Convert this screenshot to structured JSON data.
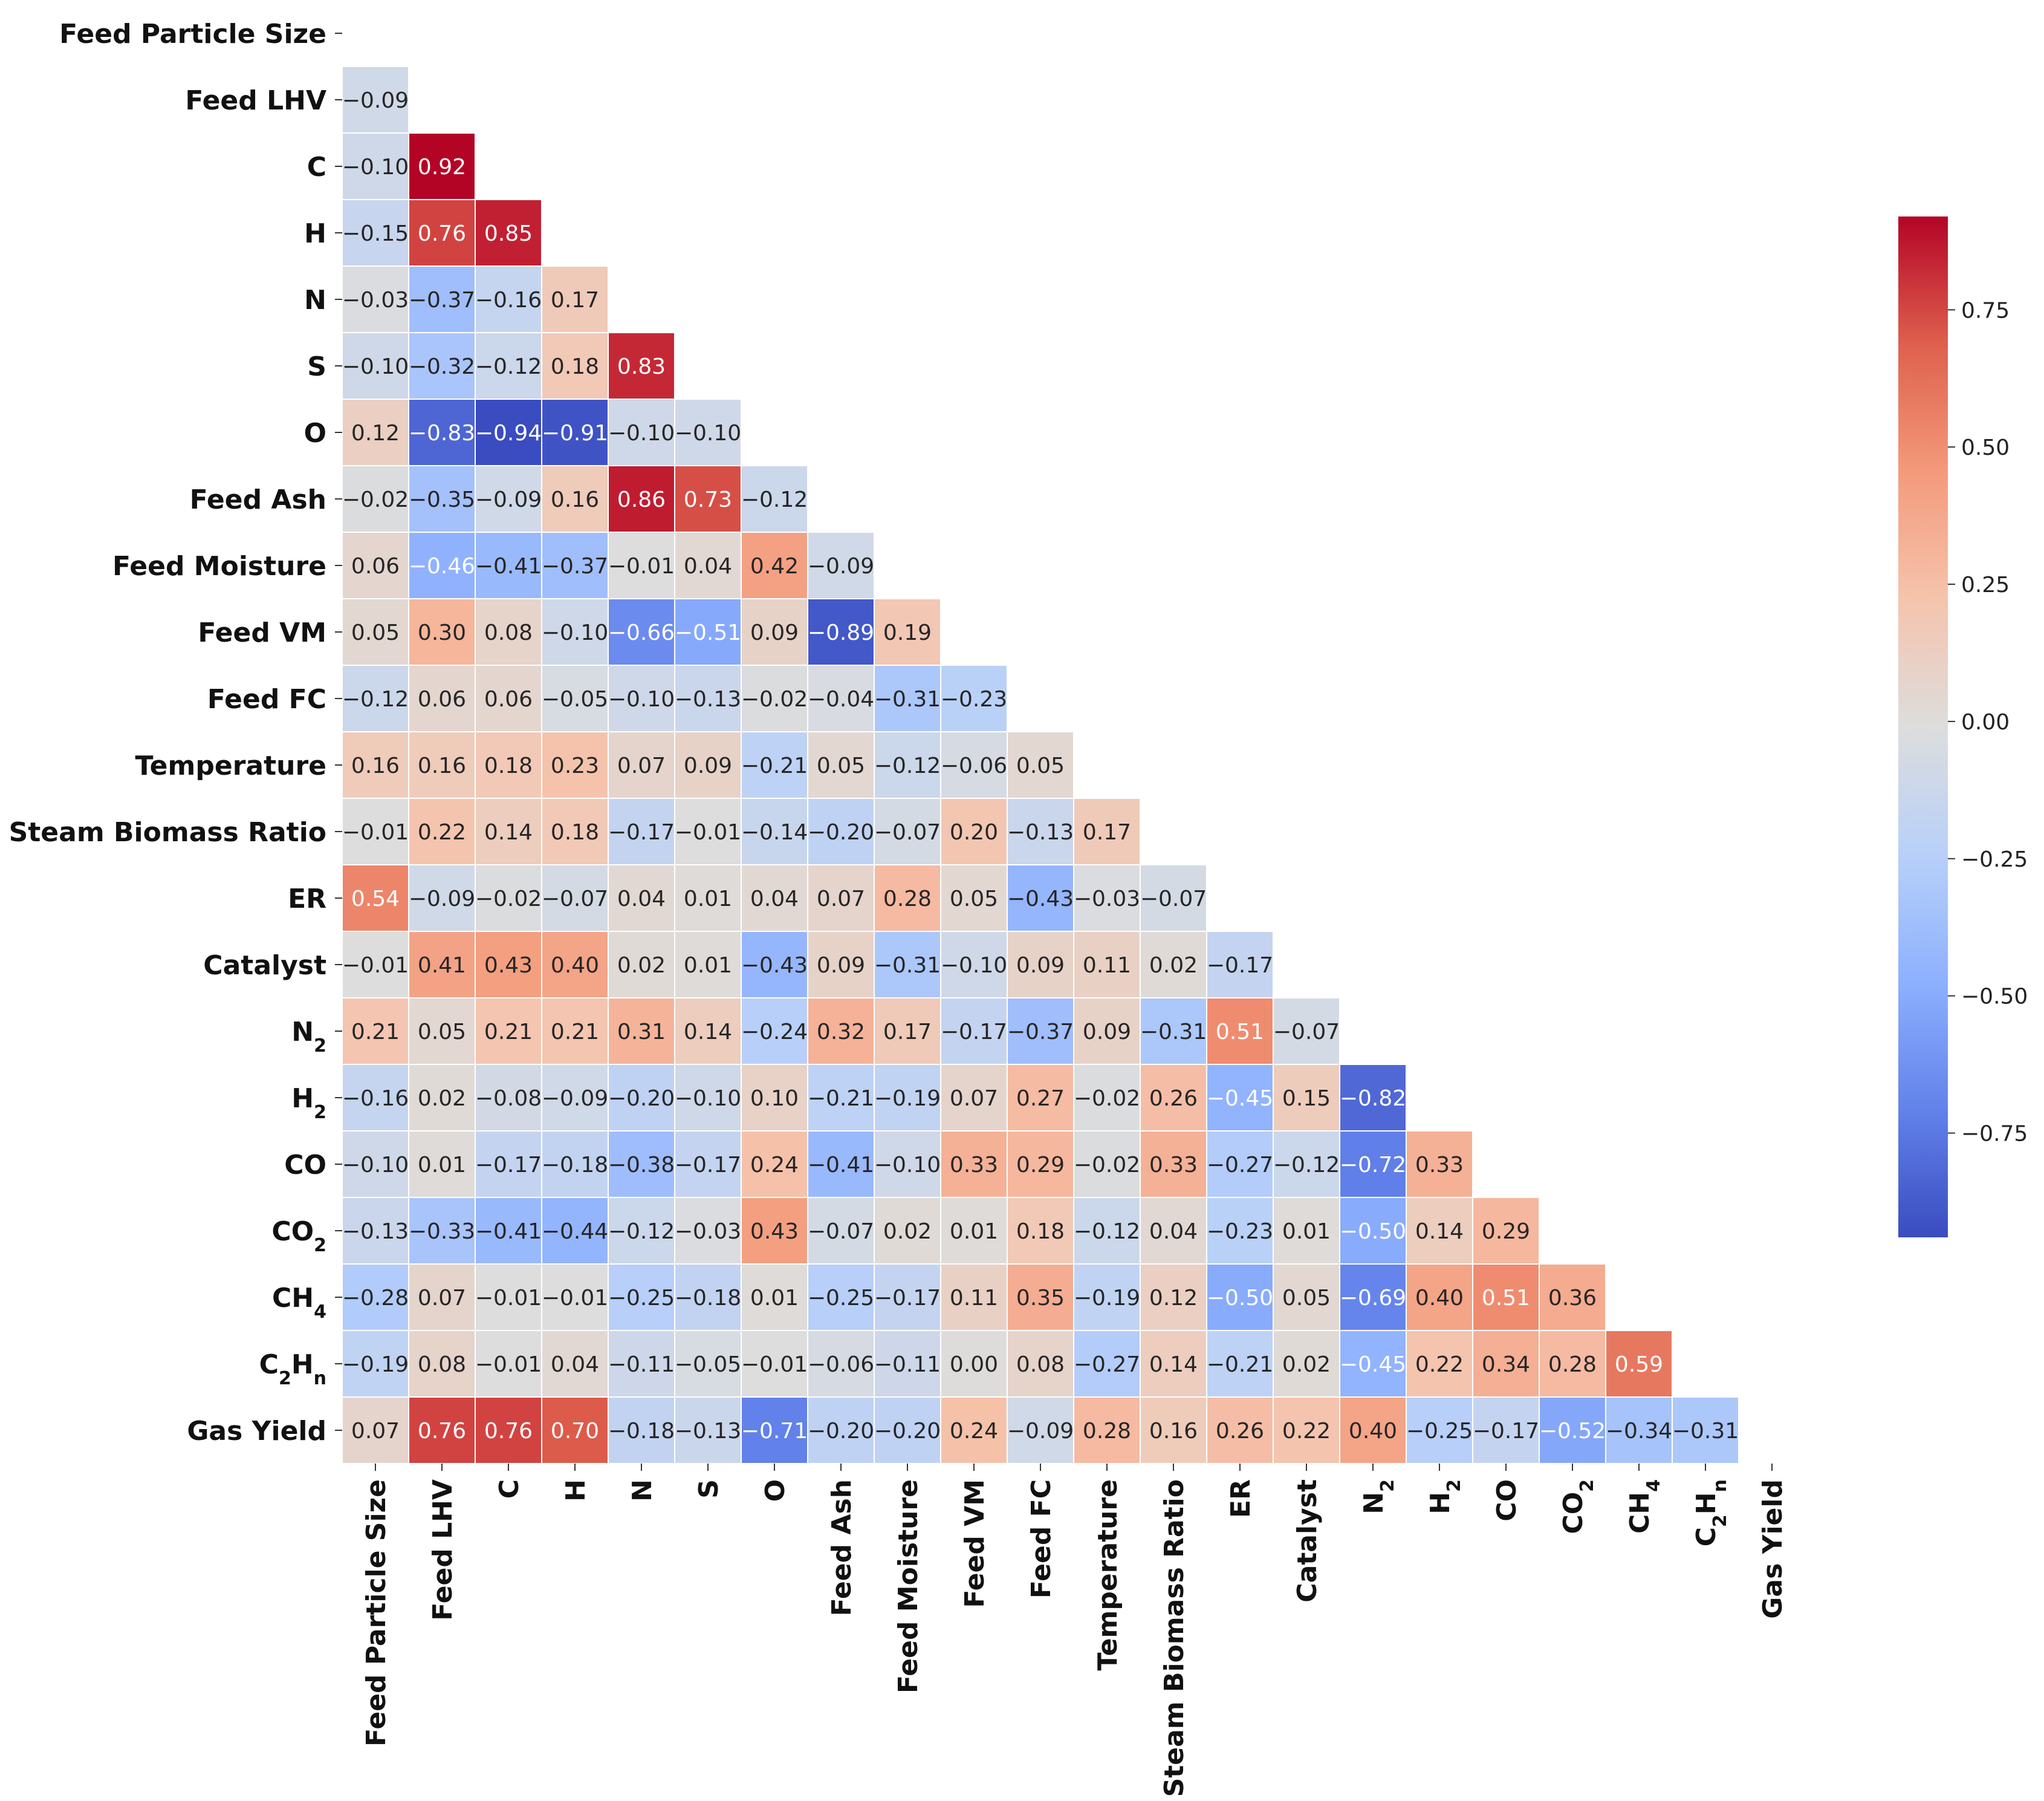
{
  "chart_data": {
    "type": "heatmap",
    "title": "",
    "xlabel": "",
    "ylabel": "",
    "mask": "upper-triangle",
    "variables": [
      [
        "Feed Particle Size"
      ],
      [
        "Feed LHV"
      ],
      [
        "C"
      ],
      [
        "H"
      ],
      [
        "N"
      ],
      [
        "S"
      ],
      [
        "O"
      ],
      [
        "Feed Ash"
      ],
      [
        "Feed Moisture"
      ],
      [
        "Feed VM"
      ],
      [
        "Feed FC"
      ],
      [
        "Temperature"
      ],
      [
        "Steam Biomass Ratio"
      ],
      [
        "ER"
      ],
      [
        "Catalyst"
      ],
      [
        "N",
        "2"
      ],
      [
        "H",
        "2"
      ],
      [
        "CO"
      ],
      [
        "CO",
        "2"
      ],
      [
        "CH",
        "4"
      ],
      [
        "C",
        "2",
        "H",
        "n"
      ],
      [
        "Gas Yield"
      ]
    ],
    "values": [
      [],
      [
        -0.09
      ],
      [
        -0.1,
        0.92
      ],
      [
        -0.15,
        0.76,
        0.85
      ],
      [
        -0.03,
        -0.37,
        -0.16,
        0.17
      ],
      [
        -0.1,
        -0.32,
        -0.12,
        0.18,
        0.83
      ],
      [
        0.12,
        -0.83,
        -0.94,
        -0.91,
        -0.1,
        -0.1
      ],
      [
        -0.02,
        -0.35,
        -0.09,
        0.16,
        0.86,
        0.73,
        -0.12
      ],
      [
        0.06,
        -0.46,
        -0.41,
        -0.37,
        -0.01,
        0.04,
        0.42,
        -0.09
      ],
      [
        0.05,
        0.3,
        0.08,
        -0.1,
        -0.66,
        -0.51,
        0.09,
        -0.89,
        0.19
      ],
      [
        -0.12,
        0.06,
        0.06,
        -0.05,
        -0.1,
        -0.13,
        -0.02,
        -0.04,
        -0.31,
        -0.23
      ],
      [
        0.16,
        0.16,
        0.18,
        0.23,
        0.07,
        0.09,
        -0.21,
        0.05,
        -0.12,
        -0.06,
        0.05
      ],
      [
        -0.01,
        0.22,
        0.14,
        0.18,
        -0.17,
        -0.01,
        -0.14,
        -0.2,
        -0.07,
        0.2,
        -0.13,
        0.17
      ],
      [
        0.54,
        -0.09,
        -0.02,
        -0.07,
        0.04,
        0.01,
        0.04,
        0.07,
        0.28,
        0.05,
        -0.43,
        -0.03,
        -0.07
      ],
      [
        -0.01,
        0.41,
        0.43,
        0.4,
        0.02,
        0.01,
        -0.43,
        0.09,
        -0.31,
        -0.1,
        0.09,
        0.11,
        0.02,
        -0.17
      ],
      [
        0.21,
        0.05,
        0.21,
        0.21,
        0.31,
        0.14,
        -0.24,
        0.32,
        0.17,
        -0.17,
        -0.37,
        0.09,
        -0.31,
        0.51,
        -0.07
      ],
      [
        -0.16,
        0.02,
        -0.08,
        -0.09,
        -0.2,
        -0.1,
        0.1,
        -0.21,
        -0.19,
        0.07,
        0.27,
        -0.02,
        0.26,
        -0.45,
        0.15,
        -0.82
      ],
      [
        -0.1,
        0.01,
        -0.17,
        -0.18,
        -0.38,
        -0.17,
        0.24,
        -0.41,
        -0.1,
        0.33,
        0.29,
        -0.02,
        0.33,
        -0.27,
        -0.12,
        -0.72,
        0.33
      ],
      [
        -0.13,
        -0.33,
        -0.41,
        -0.44,
        -0.12,
        -0.03,
        0.43,
        -0.07,
        0.02,
        0.01,
        0.18,
        -0.12,
        0.04,
        -0.23,
        0.01,
        -0.5,
        0.14,
        0.29
      ],
      [
        -0.28,
        0.07,
        -0.01,
        -0.01,
        -0.25,
        -0.18,
        0.01,
        -0.25,
        -0.17,
        0.11,
        0.35,
        -0.19,
        0.12,
        -0.5,
        0.05,
        -0.69,
        0.4,
        0.51,
        0.36
      ],
      [
        -0.19,
        0.08,
        -0.01,
        0.04,
        -0.11,
        -0.05,
        -0.01,
        -0.06,
        -0.11,
        0.0,
        0.08,
        -0.27,
        0.14,
        -0.21,
        0.02,
        -0.45,
        0.22,
        0.34,
        0.28,
        0.59
      ],
      [
        0.07,
        0.76,
        0.76,
        0.7,
        -0.18,
        -0.13,
        -0.71,
        -0.2,
        -0.2,
        0.24,
        -0.09,
        0.28,
        0.16,
        0.26,
        0.22,
        0.4,
        -0.25,
        -0.17,
        -0.52,
        -0.34,
        -0.31
      ]
    ],
    "vmin": -0.94,
    "vmax": 0.92,
    "colormap": "coolwarm",
    "colorbar": {
      "ticks": [
        0.75,
        0.5,
        0.25,
        0.0,
        -0.25,
        -0.5,
        -0.75
      ],
      "tick_labels": [
        "0.75",
        "0.50",
        "0.25",
        "0.00",
        "−0.25",
        "−0.50",
        "−0.75"
      ]
    },
    "grid": "white cell borders"
  }
}
